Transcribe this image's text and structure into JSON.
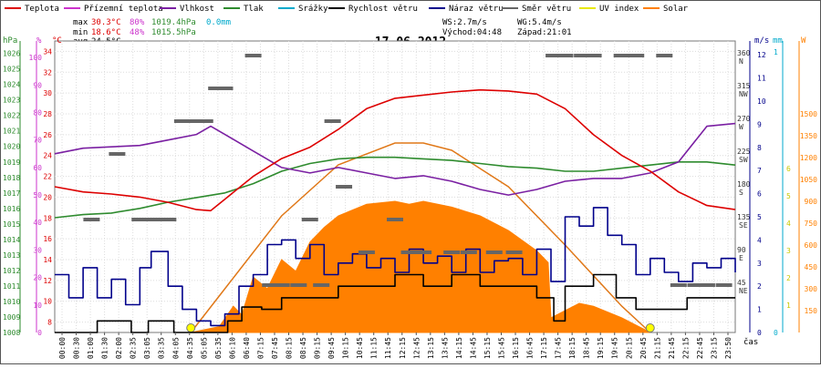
{
  "chart_data": {
    "type": "line",
    "title": "17.06.2012",
    "xlabel": "čas",
    "legend": [
      {
        "name": "Teplota",
        "color": "#dd0000"
      },
      {
        "name": "Přízemní teplota",
        "color": "#cc33cc"
      },
      {
        "name": "Vlhkost",
        "color": "#7a1fa2"
      },
      {
        "name": "Tlak",
        "color": "#2e8b2e"
      },
      {
        "name": "Srážky",
        "color": "#00aacc"
      },
      {
        "name": "Rychlost větru",
        "color": "#000000"
      },
      {
        "name": "Náraz větru",
        "color": "#00008b"
      },
      {
        "name": "Směr větru",
        "color": "#666666"
      },
      {
        "name": "UV index",
        "color": "#e8e800"
      },
      {
        "name": "Solar",
        "color": "#ff8000"
      }
    ],
    "stats": {
      "max": {
        "label": "max",
        "temp": "30.3°C",
        "hum": "80%",
        "press": "1019.4hPa",
        "rain": "0.0mm"
      },
      "min": {
        "label": "min",
        "temp": "18.6°C",
        "hum": "48%",
        "press": "1015.5hPa"
      },
      "avg": {
        "label": "avg",
        "temp": "24.5°C"
      },
      "ws": "WS:2.7m/s",
      "wg": "WG:5.4m/s",
      "sunrise": "Východ:04:48",
      "sunset": "Západ:21:01"
    },
    "axes": {
      "hpa": {
        "unit": "hPa",
        "color": "#2e8b2e",
        "ticks": [
          "1008",
          "1009",
          "1010",
          "1011",
          "1012",
          "1013",
          "1014",
          "1015",
          "1016",
          "1017",
          "1018",
          "1019",
          "1020",
          "1021",
          "1022",
          "1023",
          "1024",
          "1025",
          "1026"
        ]
      },
      "pct": {
        "unit": "%",
        "color": "#cc33cc",
        "ticks": [
          "0",
          "10",
          "20",
          "30",
          "40",
          "50",
          "60",
          "70",
          "80",
          "90",
          "100"
        ]
      },
      "temp": {
        "unit": "°C",
        "color": "#dd0000",
        "ticks": [
          "8",
          "10",
          "12",
          "14",
          "16",
          "18",
          "20",
          "22",
          "24",
          "26",
          "28",
          "30",
          "32",
          "34"
        ]
      },
      "dir": {
        "color": "#333333",
        "ticks": [
          {
            "deg": "360",
            "lbl": "N"
          },
          {
            "deg": "315",
            "lbl": "NW"
          },
          {
            "deg": "270",
            "lbl": "W"
          },
          {
            "deg": "225",
            "lbl": "SW"
          },
          {
            "deg": "180",
            "lbl": "S"
          },
          {
            "deg": "135",
            "lbl": "SE"
          },
          {
            "deg": "90",
            "lbl": "E"
          },
          {
            "deg": "45",
            "lbl": "NE"
          }
        ]
      },
      "ms": {
        "unit": "m/s",
        "color": "#00008b",
        "ticks": [
          "0",
          "1",
          "2",
          "3",
          "4",
          "5",
          "6",
          "7",
          "8",
          "9",
          "10",
          "11",
          "12"
        ]
      },
      "mm": {
        "unit": "mm",
        "color": "#00aacc",
        "ticks": [
          "0",
          "1"
        ]
      },
      "wm2": {
        "unit": "W",
        "color": "#ff8000",
        "ticks": [
          "150",
          "300",
          "450",
          "600",
          "750",
          "900",
          "1050",
          "1200",
          "1350",
          "1500"
        ]
      },
      "uv": {
        "color": "#c8c800",
        "ticks": [
          "1",
          "2",
          "3",
          "4",
          "5",
          "6"
        ]
      }
    },
    "x_labels": [
      "00:00",
      "00:30",
      "01:00",
      "01:30",
      "02:00",
      "02:35",
      "03:05",
      "03:35",
      "04:05",
      "04:35",
      "05:05",
      "05:35",
      "06:10",
      "06:40",
      "07:15",
      "07:45",
      "08:15",
      "08:45",
      "09:15",
      "09:45",
      "10:15",
      "10:45",
      "11:15",
      "11:45",
      "12:15",
      "12:45",
      "13:15",
      "13:45",
      "14:15",
      "14:45",
      "15:15",
      "15:45",
      "16:15",
      "16:45",
      "17:15",
      "17:45",
      "18:15",
      "18:45",
      "19:15",
      "19:45",
      "20:15",
      "20:45",
      "21:15",
      "21:45",
      "22:15",
      "22:45",
      "23:15",
      "23:50"
    ],
    "series": {
      "temp": {
        "unit": "°C",
        "t": [
          0,
          1,
          2,
          3,
          4,
          5,
          5.5,
          6,
          7,
          8,
          9,
          10,
          11,
          12,
          13,
          14,
          15,
          16,
          17,
          18,
          19,
          20,
          21,
          22,
          23,
          24
        ],
        "v": [
          21,
          20.5,
          20.3,
          20,
          19.5,
          18.8,
          18.7,
          19.8,
          22,
          23.7,
          24.8,
          26.5,
          28.5,
          29.5,
          29.8,
          30.1,
          30.3,
          30.2,
          29.9,
          28.5,
          26,
          24,
          22.5,
          20.5,
          19.2,
          18.8
        ]
      },
      "hum": {
        "unit": "%",
        "t": [
          0,
          1,
          2,
          3,
          4,
          5,
          5.5,
          6,
          7,
          8,
          9,
          10,
          11,
          12,
          13,
          14,
          15,
          16,
          17,
          18,
          19,
          20,
          21,
          22,
          23,
          24
        ],
        "v": [
          65,
          67,
          67.5,
          68,
          70,
          72,
          75,
          72,
          66,
          60,
          58,
          60,
          58,
          56,
          57,
          55,
          52,
          50,
          52,
          55,
          56,
          56,
          58,
          62,
          75,
          76
        ]
      },
      "press": {
        "unit": "hPa",
        "t": [
          0,
          1,
          2,
          3,
          4,
          5,
          6,
          7,
          8,
          9,
          10,
          11,
          12,
          13,
          14,
          15,
          16,
          17,
          18,
          19,
          20,
          21,
          22,
          23,
          24
        ],
        "v": [
          1015.4,
          1015.6,
          1015.7,
          1016,
          1016.4,
          1016.7,
          1017,
          1017.6,
          1018.4,
          1018.9,
          1019.2,
          1019.3,
          1019.3,
          1019.2,
          1019.1,
          1018.9,
          1018.7,
          1018.6,
          1018.4,
          1018.4,
          1018.6,
          1018.8,
          1019.0,
          1019.0,
          1018.8
        ]
      },
      "wind_speed": {
        "unit": "m/s",
        "t": [
          0,
          0.7,
          1.5,
          2.7,
          3.3,
          4.2,
          5.0,
          5.5,
          6.1,
          6.6,
          7.3,
          8.0,
          9.0,
          10.0,
          11.0,
          12.0,
          13.0,
          14.0,
          15.0,
          16.0,
          17.0,
          17.6,
          18.0,
          19.0,
          19.8,
          20.5,
          21.5,
          22.3,
          23.0,
          24.0
        ],
        "v": [
          0,
          0,
          0.5,
          0,
          0.5,
          0,
          0,
          0,
          0.5,
          1.1,
          1,
          1.5,
          1.5,
          2,
          2,
          2.5,
          2,
          2.5,
          2,
          2,
          1.5,
          0.5,
          2,
          2.5,
          1.5,
          1,
          1,
          1.5,
          1.5,
          1.5
        ]
      },
      "wind_gust": {
        "unit": "m/s",
        "t": [
          0,
          0.5,
          1.0,
          1.5,
          2.0,
          2.5,
          3.0,
          3.4,
          4.0,
          4.5,
          5.0,
          5.5,
          6.0,
          6.5,
          7.0,
          7.5,
          8.0,
          8.5,
          9.0,
          9.5,
          10.0,
          10.5,
          11.0,
          11.5,
          12.0,
          12.5,
          13.0,
          13.5,
          14.0,
          14.5,
          15.0,
          15.5,
          16.0,
          16.5,
          17.0,
          17.5,
          18.0,
          18.5,
          19.0,
          19.5,
          20.0,
          20.5,
          21.0,
          21.5,
          22.0,
          22.5,
          23.0,
          23.5,
          24.0
        ],
        "v": [
          2.5,
          1.5,
          2.8,
          1.5,
          2.3,
          1.2,
          2.8,
          3.5,
          2.0,
          1.0,
          0.5,
          0.3,
          0.8,
          2.0,
          2.5,
          3.8,
          4.0,
          3.2,
          3.8,
          2.5,
          3.0,
          3.4,
          2.8,
          3.2,
          2.6,
          3.6,
          3.0,
          3.3,
          2.6,
          3.6,
          2.6,
          3.1,
          3.2,
          2.5,
          3.6,
          2.2,
          5.0,
          4.6,
          5.4,
          4.2,
          3.8,
          2.5,
          3.2,
          2.6,
          2.2,
          3.0,
          2.8,
          3.2,
          2.6
        ]
      },
      "solar": {
        "unit": "W/m²",
        "t": [
          4.8,
          5.8,
          6.3,
          6.6,
          7.0,
          7.5,
          8.0,
          8.5,
          9.0,
          9.5,
          10.0,
          11.0,
          12.0,
          12.5,
          13.0,
          14.0,
          15.0,
          16.0,
          17.0,
          17.4,
          17.5,
          18.0,
          18.5,
          19.0,
          19.5,
          20.0,
          20.5,
          21.0
        ],
        "v": [
          0,
          40,
          180,
          120,
          380,
          300,
          500,
          420,
          620,
          720,
          800,
          880,
          900,
          880,
          900,
          860,
          800,
          700,
          560,
          480,
          100,
          150,
          200,
          180,
          140,
          100,
          50,
          0
        ]
      },
      "solar_theoretical": {
        "unit": "W/m²",
        "t": [
          4.8,
          6,
          8,
          10,
          12,
          13,
          14,
          16,
          18,
          20,
          21
        ],
        "v": [
          0,
          300,
          800,
          1150,
          1300,
          1300,
          1250,
          1000,
          600,
          180,
          0
        ]
      },
      "wind_dir": {
        "unit": "°",
        "t": [
          1.3,
          2.2,
          3.0,
          3.5,
          4.0,
          4.5,
          5.0,
          5.3,
          5.7,
          6.0,
          7.0,
          7.6,
          8.0,
          8.6,
          9.0,
          9.4,
          9.8,
          10.2,
          11.0,
          12.0,
          12.5,
          13.0,
          14.0,
          14.6,
          15.5,
          16.2,
          17.6,
          18.0,
          18.6,
          19.0,
          20.0,
          20.5,
          21.5,
          22.0,
          22.6,
          23.0,
          23.6
        ],
        "v": [
          135,
          225,
          135,
          135,
          135,
          270,
          270,
          270,
          315,
          315,
          360,
          45,
          45,
          45,
          135,
          45,
          270,
          180,
          90,
          135,
          90,
          90,
          90,
          90,
          90,
          90,
          360,
          360,
          360,
          360,
          360,
          360,
          360,
          45,
          45,
          45,
          45
        ]
      }
    }
  }
}
